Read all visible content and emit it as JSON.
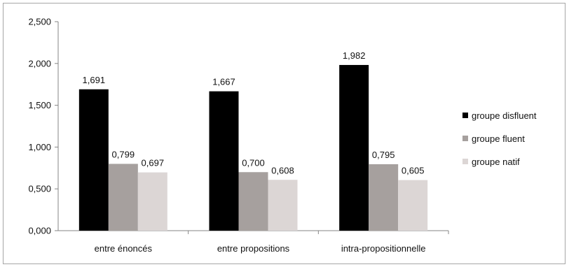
{
  "chart_data": {
    "type": "bar",
    "title": "",
    "xlabel": "",
    "ylabel": "",
    "categories": [
      "entre énoncés",
      "entre propositions",
      "intra-propositionnelle"
    ],
    "series": [
      {
        "name": "groupe disfluent",
        "color": "#000000",
        "values": [
          1.691,
          1.667,
          1.982
        ],
        "labels": [
          "1,691",
          "1,667",
          "1,982"
        ]
      },
      {
        "name": "groupe fluent",
        "color": "#a6a09e",
        "values": [
          0.799,
          0.7,
          0.795
        ],
        "labels": [
          "0,799",
          "0,700",
          "0,795"
        ]
      },
      {
        "name": "groupe natif",
        "color": "#dcd6d5",
        "values": [
          0.697,
          0.608,
          0.605
        ],
        "labels": [
          "0,697",
          "0,608",
          "0,605"
        ]
      }
    ],
    "ylim": [
      0,
      2.5
    ],
    "yticks": [
      0,
      0.5,
      1.0,
      1.5,
      2.0,
      2.5
    ],
    "ytick_labels": [
      "0,000",
      "0,500",
      "1,000",
      "1,500",
      "2,000",
      "2,500"
    ],
    "grid": false,
    "legend": "right"
  }
}
